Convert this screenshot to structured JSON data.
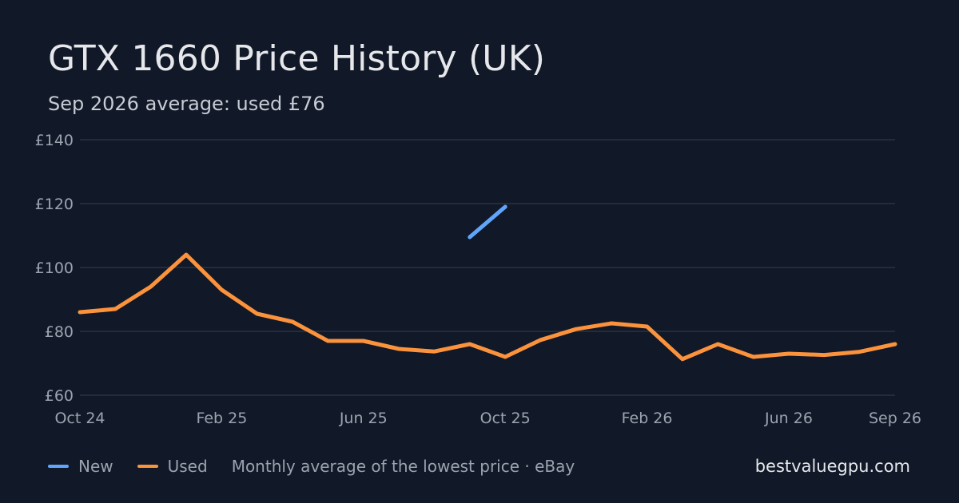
{
  "header": {
    "title": "GTX 1660 Price History (UK)",
    "subtitle": "Sep 2026 average: used £76"
  },
  "legend": {
    "new_label": "New",
    "used_label": "Used",
    "note": "Monthly average of the lowest price · eBay"
  },
  "brand": "bestvaluegpu.com",
  "colors": {
    "new": "#60a5fa",
    "used": "#fb923c",
    "grid": "#2a3342",
    "tick": "#9ca3af"
  },
  "chart_data": {
    "type": "line",
    "x": [
      "2024-10",
      "2024-11",
      "2024-12",
      "2025-01",
      "2025-02",
      "2025-03",
      "2025-04",
      "2025-05",
      "2025-06",
      "2025-07",
      "2025-08",
      "2025-09",
      "2025-10",
      "2025-11",
      "2025-12",
      "2026-01",
      "2026-02",
      "2026-03",
      "2026-04",
      "2026-05",
      "2026-06",
      "2026-07",
      "2026-08",
      "2026-09"
    ],
    "x_tick_labels": [
      {
        "x": "2024-10",
        "label": "Oct 24"
      },
      {
        "x": "2025-02",
        "label": "Feb 25"
      },
      {
        "x": "2025-06",
        "label": "Jun 25"
      },
      {
        "x": "2025-10",
        "label": "Oct 25"
      },
      {
        "x": "2026-02",
        "label": "Feb 26"
      },
      {
        "x": "2026-06",
        "label": "Jun 26"
      },
      {
        "x": "2026-09",
        "label": "Sep 26"
      }
    ],
    "y_ticks": [
      60,
      80,
      100,
      120,
      140
    ],
    "y_tick_labels": [
      "£60",
      "£80",
      "£100",
      "£120",
      "£140"
    ],
    "ylim": [
      60,
      140
    ],
    "grid": true,
    "legend_position": "bottom-left",
    "series": [
      {
        "name": "New",
        "values": [
          null,
          null,
          null,
          null,
          null,
          null,
          null,
          null,
          null,
          null,
          null,
          109.5,
          119,
          null,
          null,
          null,
          null,
          null,
          null,
          null,
          null,
          null,
          null,
          null
        ]
      },
      {
        "name": "Used",
        "values": [
          86,
          87,
          94,
          104,
          93,
          85.5,
          83,
          77,
          77,
          74.5,
          73.7,
          76,
          72,
          77.3,
          80.7,
          82.5,
          81.5,
          71.3,
          76,
          72,
          73,
          72.6,
          73.6,
          76
        ]
      }
    ]
  }
}
